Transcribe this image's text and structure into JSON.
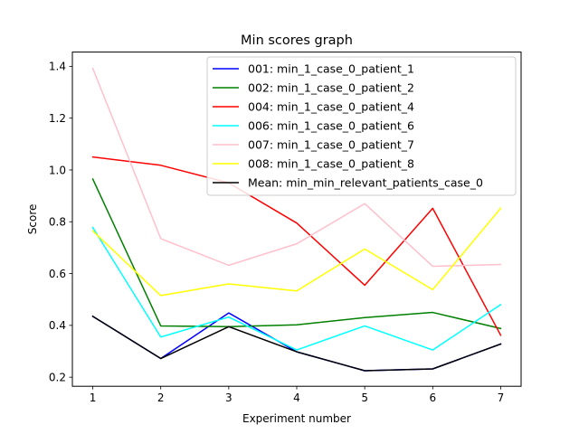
{
  "chart_data": {
    "type": "line",
    "title": "Min scores graph",
    "xlabel": "Experiment number",
    "ylabel": "Score",
    "x": [
      1,
      2,
      3,
      4,
      5,
      6,
      7
    ],
    "xlim": [
      0.7,
      7.3
    ],
    "ylim": [
      0.165,
      1.455
    ],
    "yticks": [
      0.2,
      0.4,
      0.6,
      0.8,
      1.0,
      1.2,
      1.4
    ],
    "ytick_labels": [
      "0.2",
      "0.4",
      "0.6",
      "0.8",
      "1.0",
      "1.2",
      "1.4"
    ],
    "xticks": [
      1,
      2,
      3,
      4,
      5,
      6,
      7
    ],
    "xtick_labels": [
      "1",
      "2",
      "3",
      "4",
      "5",
      "6",
      "7"
    ],
    "grid": false,
    "legend_position": "top-right",
    "series": [
      {
        "name": "001: min_1_case_0_patient_1",
        "color": "#0000ff",
        "values": [
          0.435,
          0.272,
          0.448,
          0.298,
          0.225,
          0.232,
          0.328
        ]
      },
      {
        "name": "002: min_1_case_0_patient_2",
        "color": "#008000",
        "values": [
          0.965,
          0.398,
          0.395,
          0.402,
          0.43,
          0.45,
          0.388
        ]
      },
      {
        "name": "004: min_1_case_0_patient_4",
        "color": "#ff0000",
        "values": [
          1.05,
          1.018,
          0.95,
          0.795,
          0.555,
          0.852,
          0.362
        ]
      },
      {
        "name": "006: min_1_case_0_patient_6",
        "color": "#00ffff",
        "values": [
          0.778,
          0.355,
          0.432,
          0.305,
          0.398,
          0.305,
          0.48
        ]
      },
      {
        "name": "007: min_1_case_0_patient_7",
        "color": "#ffc0cb",
        "values": [
          1.392,
          0.735,
          0.632,
          0.715,
          0.87,
          0.628,
          0.635
        ]
      },
      {
        "name": "008: min_1_case_0_patient_8",
        "color": "#ffff00",
        "values": [
          0.765,
          0.515,
          0.56,
          0.533,
          0.695,
          0.538,
          0.852
        ]
      },
      {
        "name": "Mean: min_min_relevant_patients_case_0",
        "color": "#000000",
        "values": [
          0.435,
          0.272,
          0.395,
          0.298,
          0.225,
          0.232,
          0.328
        ]
      }
    ]
  }
}
